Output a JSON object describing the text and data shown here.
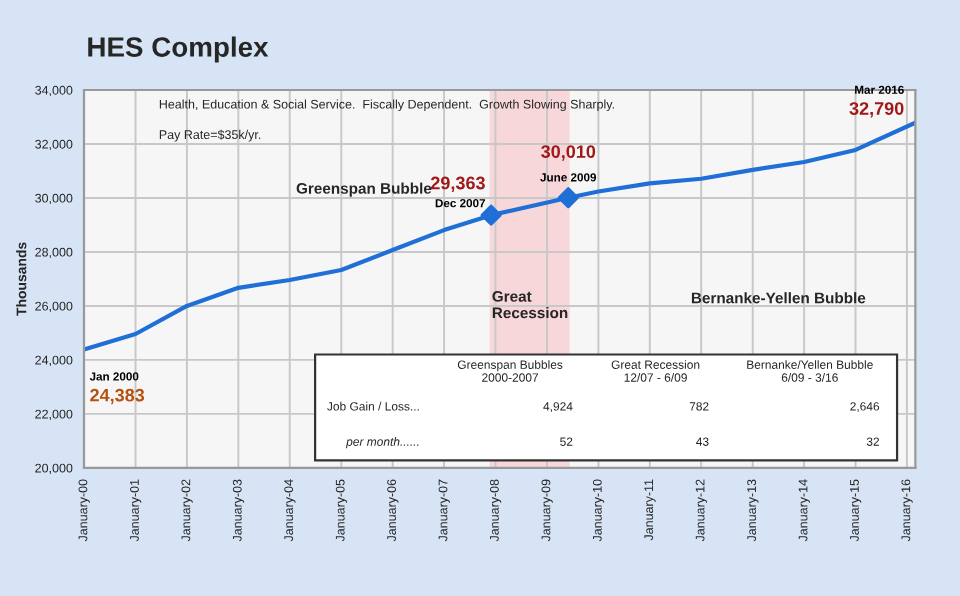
{
  "chart_data": {
    "type": "line",
    "title": "HES Complex",
    "subtitle": "Health, Education & Social Service.  Fiscally Dependent.  Growth Slowing Sharply.",
    "ylabel": "Thousands",
    "x": [
      "2000-01",
      "2001-01",
      "2002-01",
      "2003-01",
      "2004-01",
      "2005-01",
      "2006-01",
      "2007-01",
      "2007-12",
      "2009-06",
      "2010-01",
      "2011-01",
      "2012-01",
      "2013-01",
      "2014-01",
      "2015-01",
      "2016-03"
    ],
    "series": [
      {
        "color": "#1f6fd6",
        "values": [
          24383,
          24960,
          26000,
          26670,
          26960,
          27330,
          28070,
          28810,
          29363,
          30010,
          30240,
          30540,
          30710,
          31040,
          31330,
          31780,
          32790
        ]
      },
      {
        "type": "scatter",
        "marker": "diamond",
        "color": "#1f6fd6",
        "x": [
          "2007-12",
          "2009-06"
        ],
        "values": [
          29363,
          30010
        ]
      }
    ],
    "xlim": [
      "2000-01",
      "2016-03"
    ],
    "xticks": [
      {
        "value": "2000-01",
        "label": "January-00"
      },
      {
        "value": "2001-01",
        "label": "January-01"
      },
      {
        "value": "2002-01",
        "label": "January-02"
      },
      {
        "value": "2003-01",
        "label": "January-03"
      },
      {
        "value": "2004-01",
        "label": "January-04"
      },
      {
        "value": "2005-01",
        "label": "January-05"
      },
      {
        "value": "2006-01",
        "label": "January-06"
      },
      {
        "value": "2007-01",
        "label": "January-07"
      },
      {
        "value": "2008-01",
        "label": "January-08"
      },
      {
        "value": "2009-01",
        "label": "January-09"
      },
      {
        "value": "2010-01",
        "label": "January-10"
      },
      {
        "value": "2011-01",
        "label": "January-11"
      },
      {
        "value": "2012-01",
        "label": "January-12"
      },
      {
        "value": "2013-01",
        "label": "January-13"
      },
      {
        "value": "2014-01",
        "label": "January-14"
      },
      {
        "value": "2015-01",
        "label": "January-15"
      },
      {
        "value": "2016-01",
        "label": "January-16"
      }
    ],
    "ylim": [
      20000,
      34000
    ],
    "yticks": [
      {
        "value": 20000,
        "label": "20,000"
      },
      {
        "value": 22000,
        "label": "22,000"
      },
      {
        "value": 24000,
        "label": "24,000"
      },
      {
        "value": 26000,
        "label": "26,000"
      },
      {
        "value": 28000,
        "label": "28,000"
      },
      {
        "value": 30000,
        "label": "30,000"
      },
      {
        "value": 32000,
        "label": "32,000"
      },
      {
        "value": 34000,
        "label": "34,000"
      }
    ],
    "grid": true,
    "bands": [
      {
        "axis": "x",
        "from": "2007-12",
        "to": "2009-06",
        "label": "Great\nRecession",
        "color": "#f8d7da"
      }
    ],
    "annotations": [
      "Pay Rate=$35k/yr.",
      "Greenspan Bubble",
      "Bernanke-Yellen Bubble",
      {
        "text": "Jan 2000",
        "x": "2000-01",
        "y": 24383
      },
      {
        "text": "24,383",
        "x": "2000-01",
        "y": 24383
      },
      {
        "text": "Dec 2007",
        "x": "2007-12",
        "y": 29363
      },
      {
        "text": "29,363",
        "x": "2007-12",
        "y": 29363
      },
      {
        "text": "June 2009",
        "x": "2009-06",
        "y": 30010
      },
      {
        "text": "30,010",
        "x": "2009-06",
        "y": 30010
      },
      {
        "text": "Mar 2016",
        "x": "2016-03",
        "y": 32790
      },
      {
        "text": "32,790",
        "x": "2016-03",
        "y": 32790
      },
      "Greenspan Bubbles\n2000-2007",
      "Great Recession\n12/07 - 6/09",
      "Bernanke/Yellen Bubble\n6/09 - 3/16",
      "Job Gain / Loss...",
      "4,924",
      "782",
      "2,646",
      "per month......",
      "52",
      "43",
      "32"
    ]
  }
}
